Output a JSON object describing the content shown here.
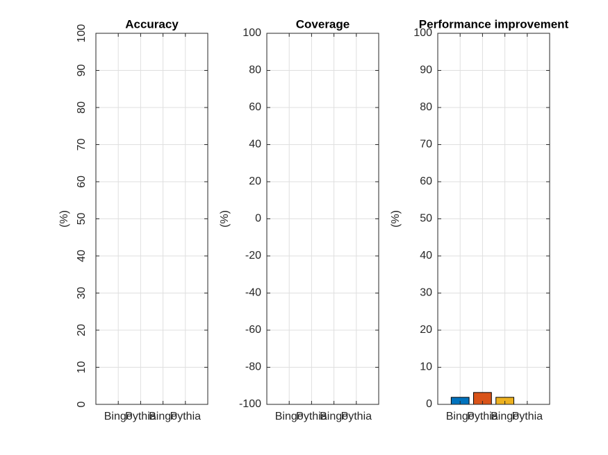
{
  "chart_data": [
    {
      "type": "bar",
      "title": "Accuracy",
      "ylabel": "(%)",
      "categories": [
        "Bingo",
        "Pythia",
        "Bingo",
        "Pythia"
      ],
      "values": [
        0,
        0,
        0,
        0
      ],
      "colors": [
        "#0072bd",
        "#d95319",
        "#edb120",
        "#7e2f8e"
      ],
      "ylim": [
        0,
        100
      ],
      "yticks": [
        0,
        10,
        20,
        30,
        40,
        50,
        60,
        70,
        80,
        90,
        100
      ],
      "ytick_rotation": 90,
      "grid": true
    },
    {
      "type": "bar",
      "title": "Coverage",
      "ylabel": "(%)",
      "categories": [
        "Bingo",
        "Pythia",
        "Bingo",
        "Pythia"
      ],
      "values": [
        0,
        0,
        0,
        0
      ],
      "colors": [
        "#0072bd",
        "#d95319",
        "#edb120",
        "#7e2f8e"
      ],
      "ylim": [
        -100,
        100
      ],
      "yticks": [
        -100,
        -80,
        -60,
        -40,
        -20,
        0,
        20,
        40,
        60,
        80,
        100
      ],
      "ytick_rotation": 0,
      "grid": true
    },
    {
      "type": "bar",
      "title": "Performance improvement",
      "ylabel": "(%)",
      "categories": [
        "Bingo",
        "Pythia",
        "Bingo",
        "Pythia"
      ],
      "values": [
        1.9,
        3.2,
        1.9,
        0
      ],
      "colors": [
        "#0072bd",
        "#d95319",
        "#edb120",
        "#7e2f8e"
      ],
      "ylim": [
        0,
        100
      ],
      "yticks": [
        0,
        10,
        20,
        30,
        40,
        50,
        60,
        70,
        80,
        90,
        100
      ],
      "ytick_rotation": 0,
      "grid": true
    }
  ]
}
